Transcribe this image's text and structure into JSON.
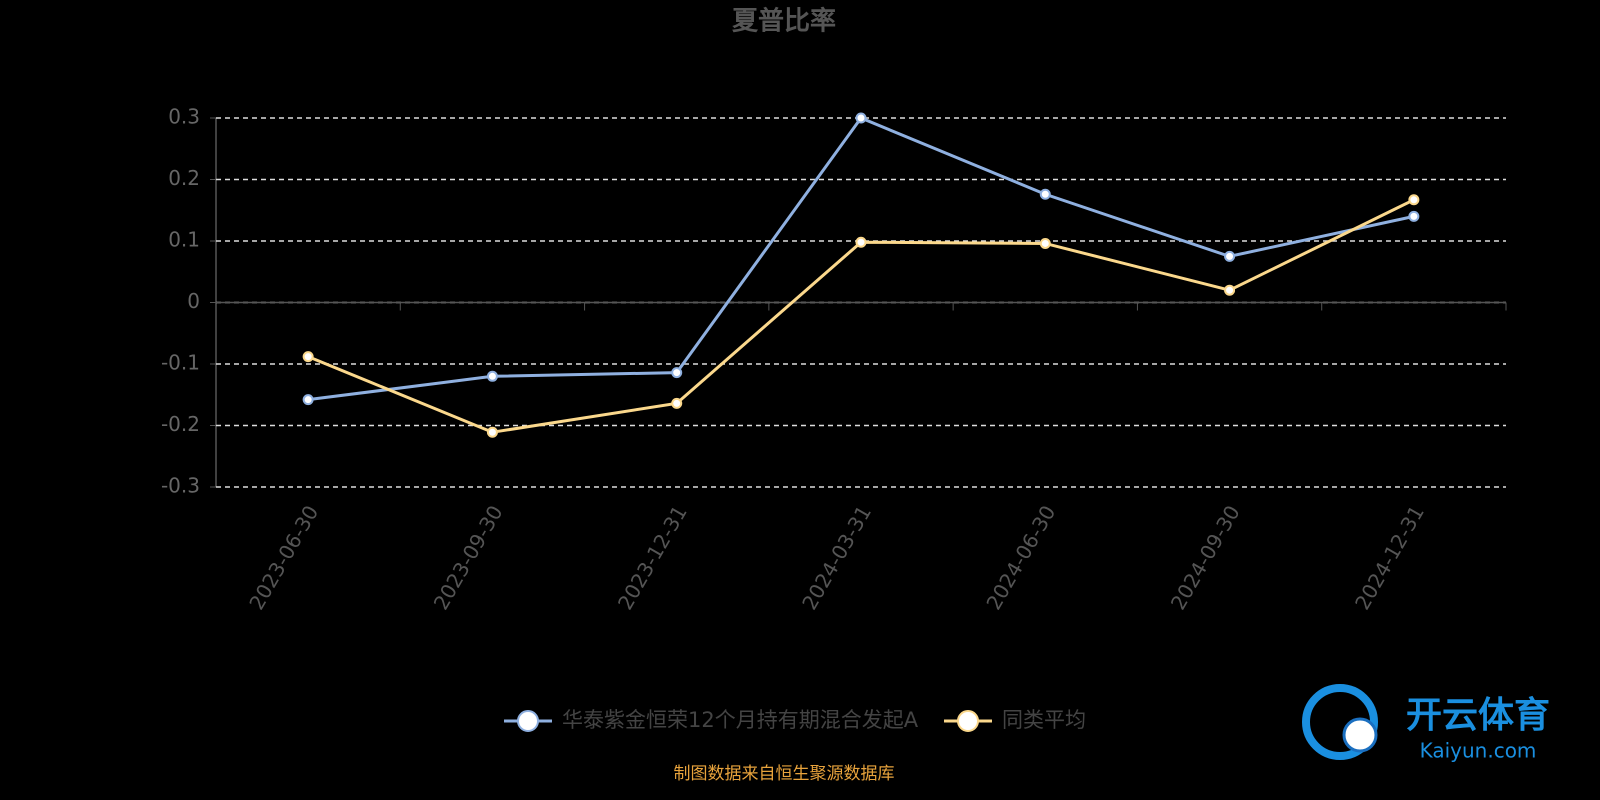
{
  "chart_data": {
    "type": "line",
    "title": "夏普比率",
    "categories": [
      "2023-06-30",
      "2023-09-30",
      "2023-12-31",
      "2024-03-31",
      "2024-06-30",
      "2024-09-30",
      "2024-12-31"
    ],
    "series": [
      {
        "name": "华泰紫金恒荣12个月持有期混合发起A",
        "color": "#8fb0e0",
        "values": [
          -0.158,
          -0.12,
          -0.114,
          0.3,
          0.176,
          0.075,
          0.14
        ]
      },
      {
        "name": "同类平均",
        "color": "#fbd88c",
        "values": [
          -0.088,
          -0.211,
          -0.164,
          0.098,
          0.096,
          0.02,
          0.167
        ]
      }
    ],
    "ylim": [
      -0.3,
      0.3
    ],
    "yticks": [
      0.3,
      0.2,
      0.1,
      0,
      -0.1,
      -0.2,
      -0.3
    ],
    "grid": true,
    "source": "制图数据来自恒生聚源数据库",
    "watermark": {
      "brand": "开云体育",
      "site": "Kaiyun.com"
    }
  }
}
